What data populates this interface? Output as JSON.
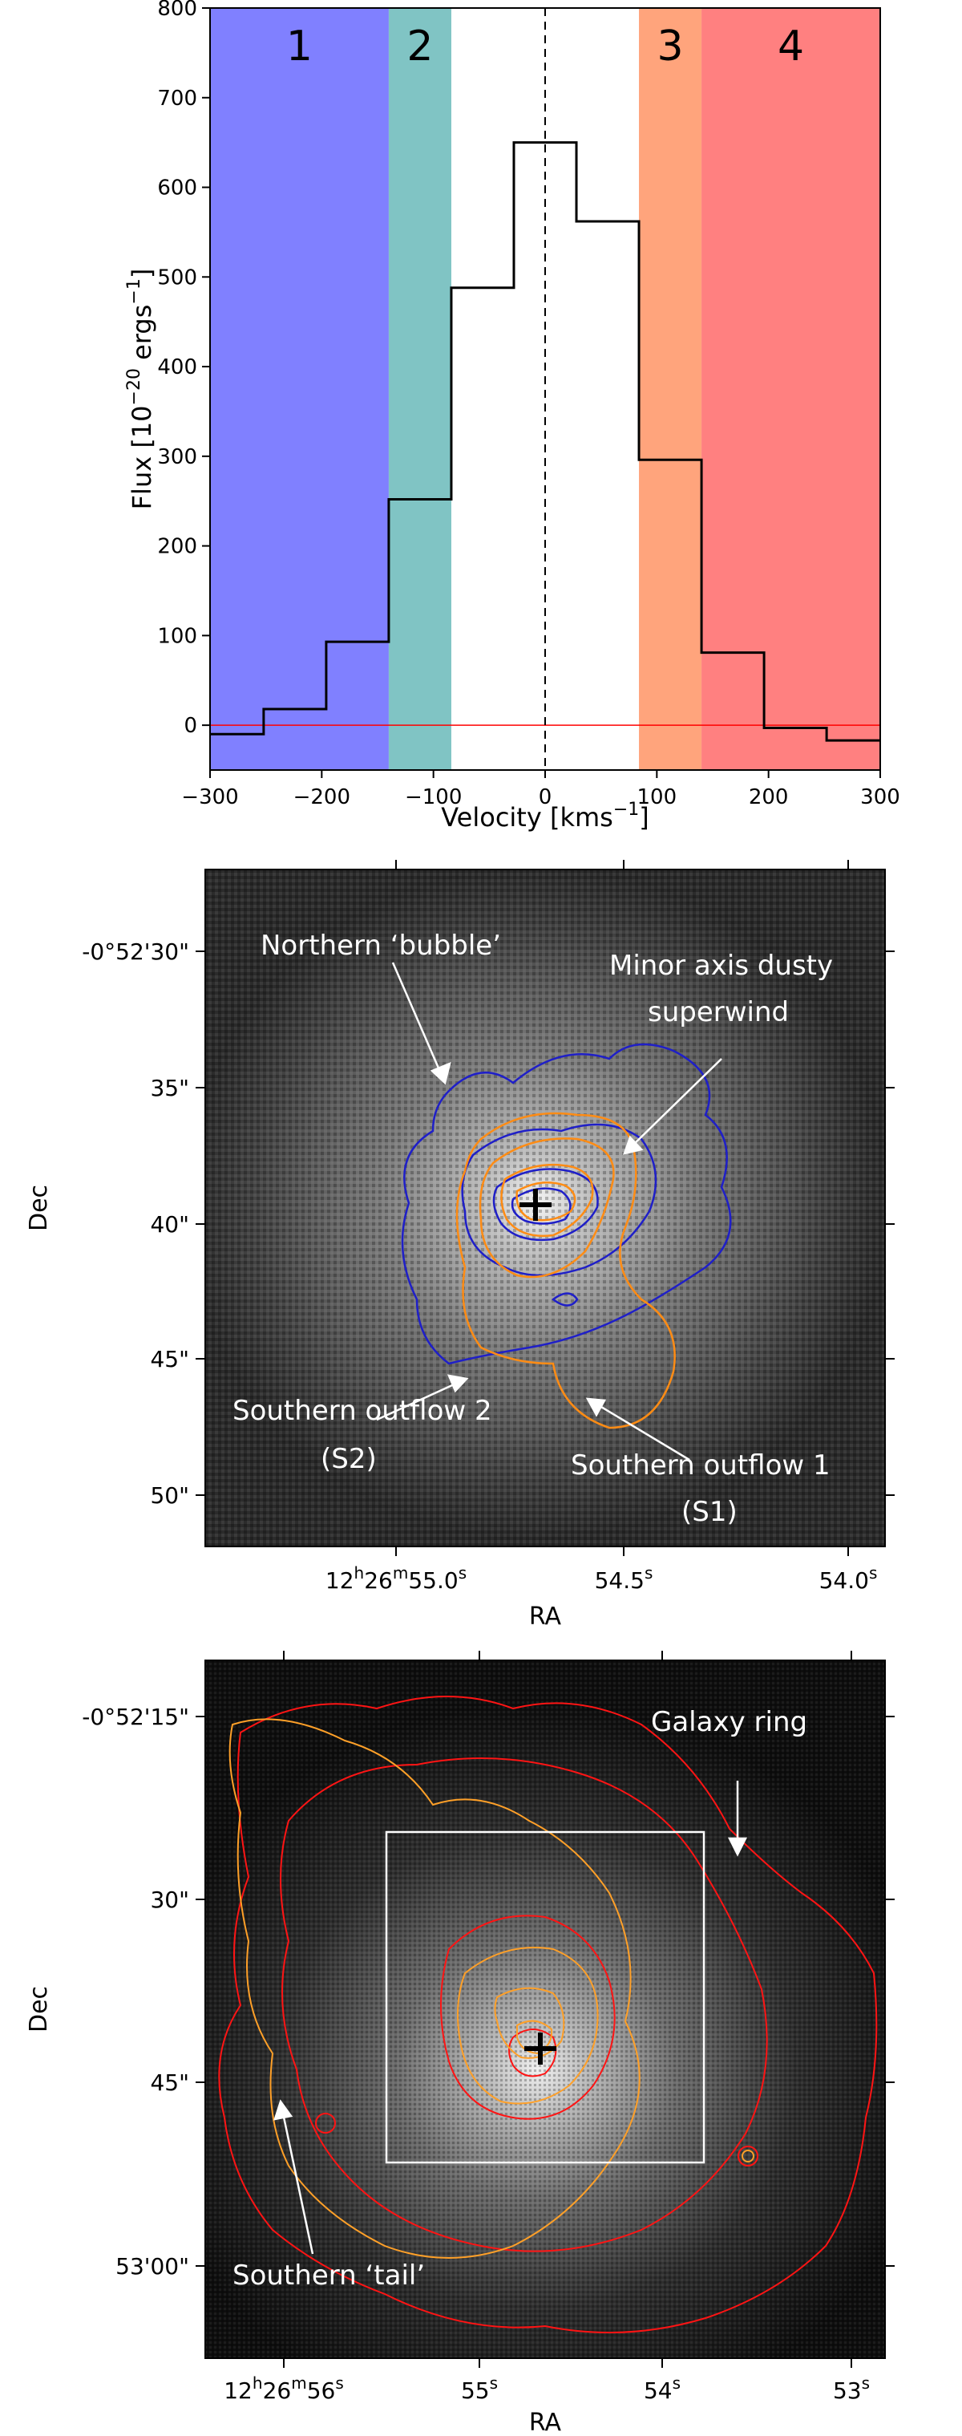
{
  "chart_data": [
    {
      "type": "line",
      "xlabel": "Velocity [kms$^{-1}$]",
      "ylabel": "Flux [10$^{-20}$ ergs$^{-1}$]",
      "xlim": [
        -300,
        300
      ],
      "ylim": [
        -50,
        800
      ],
      "xticks": [
        -300,
        -200,
        -100,
        0,
        100,
        200,
        300
      ],
      "yticks": [
        0,
        100,
        200,
        300,
        400,
        500,
        600,
        700,
        800
      ],
      "bands": [
        {
          "label": "1",
          "x0": -300,
          "x1": -140,
          "color": "#8080ff"
        },
        {
          "label": "2",
          "x0": -140,
          "x1": -84,
          "color": "#80c4c4"
        },
        {
          "label": "3",
          "x0": 84,
          "x1": 140,
          "color": "#ffa47c"
        },
        {
          "label": "4",
          "x0": 140,
          "x1": 300,
          "color": "#ff8080"
        }
      ],
      "step_edges": [
        -300,
        -252,
        -196,
        -140,
        -84,
        -28,
        28,
        84,
        140,
        196,
        252,
        300
      ],
      "step_values": [
        -10,
        18,
        93,
        252,
        488,
        650,
        562,
        296,
        81,
        -3,
        -17
      ],
      "zero_line_color": "#ff0000",
      "center_line": 0
    },
    {
      "type": "image",
      "xlabel": "RA",
      "ylabel": "Dec",
      "xticks": [
        "12h26m55.0s",
        "54.5s",
        "54.0s"
      ],
      "yticks": [
        "-0°52'30\"",
        "35\"",
        "40\"",
        "45\"",
        "50\""
      ],
      "contour_colors": [
        "#1f1fc8",
        "#ff8c14"
      ],
      "marker": "+",
      "annotations": [
        "Northern ‘bubble’",
        "Minor axis dusty",
        "superwind",
        "Southern outflow 2",
        "(S2)",
        "Southern outflow 1",
        "(S1)"
      ]
    },
    {
      "type": "image",
      "xlabel": "RA",
      "ylabel": "Dec",
      "xticks": [
        "12h26m56s",
        "55s",
        "54s",
        "53s"
      ],
      "yticks": [
        "-0°52'15\"",
        "30\"",
        "45\"",
        "53'00\""
      ],
      "contour_colors": [
        "#ff1414",
        "#ffa028"
      ],
      "marker": "+",
      "annotations": [
        "Galaxy ring",
        "Southern ‘tail’"
      ]
    }
  ]
}
